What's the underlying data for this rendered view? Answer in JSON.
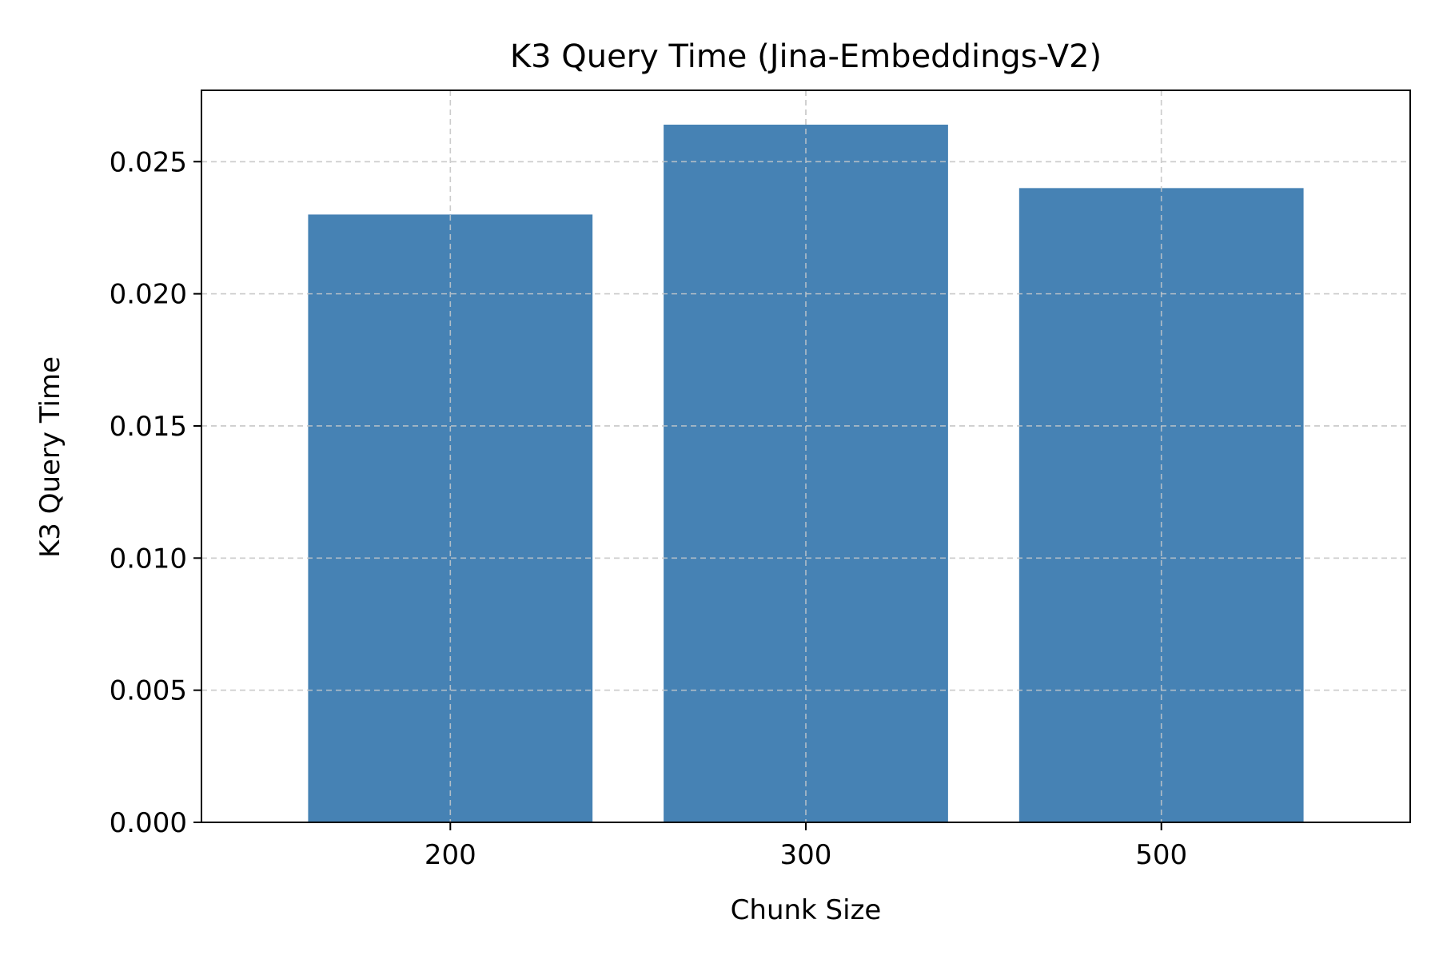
{
  "chart_data": {
    "type": "bar",
    "title": "K3 Query Time (Jina-Embeddings-V2)",
    "xlabel": "Chunk Size",
    "ylabel": "K3 Query Time",
    "categories": [
      "200",
      "300",
      "500"
    ],
    "values": [
      0.023,
      0.0264,
      0.024
    ],
    "ylim": [
      0,
      0.0277
    ],
    "yticks": [
      0.0,
      0.005,
      0.01,
      0.015,
      0.02,
      0.025
    ],
    "ytick_labels": [
      "0.000",
      "0.005",
      "0.010",
      "0.015",
      "0.020",
      "0.025"
    ],
    "grid": true,
    "bar_color": "#4682b4",
    "grid_color": "#cccccc"
  }
}
